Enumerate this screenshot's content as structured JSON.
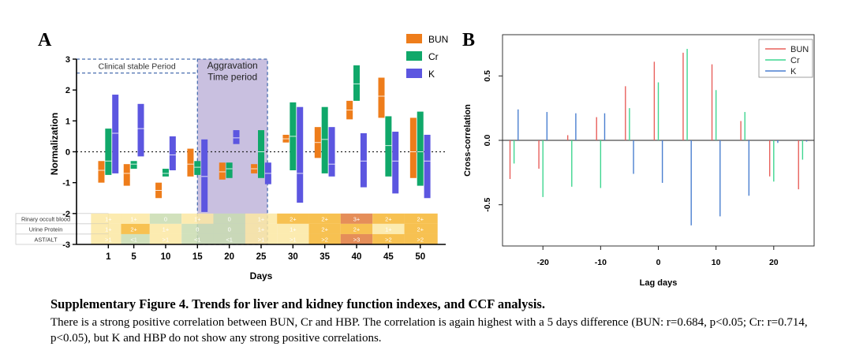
{
  "panel_a_label": "A",
  "panel_b_label": "B",
  "caption": {
    "title": "Supplementary Figure 4. Trends for liver and kidney function indexes, and CCF analysis.",
    "body": "There is a strong positive correlation between BUN, Cr and HBP. The correlation is again highest with a 5 days difference (BUN: r=0.684, p<0.05; Cr: r=0.714, p<0.05), but K and HBP do not show any strong positive correlations."
  },
  "colors": {
    "BUN_a": "#ee7d1b",
    "Cr_a": "#10a86a",
    "K_a": "#5c56e0",
    "BUN_b": "#e8605c",
    "Cr_b": "#3fd690",
    "K_b": "#4a7fd0",
    "period": "#c9c0e0",
    "period_border": "#4a6fb0"
  },
  "chart_data": [
    {
      "type": "bar",
      "subtype": "floating-range",
      "xlabel": "Days",
      "ylabel": "Normalization",
      "ylim": [
        -3,
        3
      ],
      "yticks": [
        -3,
        -2,
        -1,
        0,
        1,
        2,
        3
      ],
      "categories": [
        1,
        5,
        10,
        15,
        20,
        25,
        30,
        35,
        40,
        45,
        50
      ],
      "series": [
        {
          "name": "BUN",
          "ranges": [
            [
              -1.0,
              -0.3
            ],
            [
              -1.1,
              -0.4
            ],
            [
              -1.5,
              -1.0
            ],
            [
              -0.8,
              0.1
            ],
            [
              -0.9,
              -0.35
            ],
            [
              -0.7,
              -0.4
            ],
            [
              0.3,
              0.55
            ],
            [
              -0.2,
              0.8
            ],
            [
              1.05,
              1.65
            ],
            [
              1.1,
              2.4
            ],
            [
              -0.85,
              1.1
            ]
          ],
          "means": [
            -0.6,
            -0.7,
            -1.25,
            -0.4,
            -0.65,
            -0.55,
            0.42,
            0.3,
            1.35,
            1.8,
            0.0
          ]
        },
        {
          "name": "Cr",
          "ranges": [
            [
              -0.75,
              0.75
            ],
            [
              -0.55,
              -0.3
            ],
            [
              -0.8,
              -0.55
            ],
            [
              -0.75,
              -0.3
            ],
            [
              -0.85,
              -0.35
            ],
            [
              -0.85,
              0.7
            ],
            [
              -0.6,
              1.6
            ],
            [
              -0.7,
              1.45
            ],
            [
              1.65,
              2.8
            ],
            [
              -0.8,
              1.15
            ],
            [
              -1.1,
              1.3
            ]
          ],
          "means": [
            -0.3,
            -0.4,
            -0.7,
            -0.5,
            -0.55,
            0.0,
            0.5,
            0.4,
            2.2,
            0.2,
            0.0
          ]
        },
        {
          "name": "K",
          "ranges": [
            [
              -0.7,
              1.85
            ],
            [
              -0.15,
              1.55
            ],
            [
              -0.6,
              0.5
            ],
            [
              -1.95,
              0.4
            ],
            [
              0.25,
              0.7
            ],
            [
              -1.05,
              -0.35
            ],
            [
              -1.65,
              1.45
            ],
            [
              -0.8,
              0.8
            ],
            [
              -1.15,
              0.6
            ],
            [
              -1.35,
              0.65
            ],
            [
              -1.5,
              0.55
            ]
          ],
          "means": [
            0.6,
            0.75,
            -0.1,
            -0.8,
            0.45,
            -0.7,
            -0.7,
            -0.4,
            -0.3,
            -0.3,
            -0.3
          ]
        }
      ],
      "reference_line": 0,
      "annotations": [
        {
          "text": "Clinical stable Period",
          "x_range": [
            -4,
            15
          ]
        },
        {
          "text": "Aggravation Time period",
          "x_range": [
            15,
            26
          ]
        }
      ],
      "table": {
        "rows": [
          {
            "label": "Rinary occult blood",
            "values": [
              "1+",
              "1+",
              "0",
              "1+",
              "0",
              "1+",
              "2+",
              "2+",
              "3+",
              "2+",
              "2+"
            ]
          },
          {
            "label": "Urine Protein",
            "values": [
              "1+",
              "2+",
              "1+",
              "0",
              "0",
              "1+",
              "1+",
              "2+",
              "2+",
              "1+",
              "2+"
            ]
          },
          {
            "label": "AST/ALT",
            "values": [
              ">1",
              "<1",
              ">1",
              "<1",
              "<1",
              ">1",
              ">1",
              ">2",
              ">3",
              ">2",
              ">2"
            ]
          }
        ]
      },
      "legend": {
        "position": "top-right",
        "entries": [
          "BUN",
          "Cr",
          "K"
        ]
      }
    },
    {
      "type": "bar",
      "subtype": "stem",
      "xlabel": "Lag days",
      "ylabel": "Cross-correlation",
      "xlim": [
        -27,
        27
      ],
      "ylim": [
        -0.82,
        0.82
      ],
      "xticks": [
        -20,
        -10,
        0,
        10,
        20
      ],
      "yticks": [
        -0.5,
        0.0,
        0.5
      ],
      "ytick_labels": [
        "-0.5",
        "0.0",
        "0.5"
      ],
      "lags": [
        -25,
        -20,
        -15,
        -10,
        -5,
        0,
        5,
        10,
        15,
        20,
        25
      ],
      "series": [
        {
          "name": "BUN",
          "offset": -0.7,
          "values": [
            -0.3,
            -0.22,
            0.04,
            0.18,
            0.42,
            0.61,
            0.68,
            0.59,
            0.15,
            -0.28,
            -0.38
          ]
        },
        {
          "name": "Cr",
          "offset": 0,
          "values": [
            -0.18,
            -0.44,
            -0.36,
            -0.37,
            0.25,
            0.45,
            0.71,
            0.39,
            0.22,
            -0.32,
            -0.15
          ]
        },
        {
          "name": "K",
          "offset": 0.7,
          "values": [
            0.24,
            0.22,
            0.21,
            0.21,
            -0.26,
            -0.33,
            -0.66,
            -0.59,
            -0.43,
            -0.02,
            -0.01
          ]
        }
      ],
      "legend": {
        "position": "top-right",
        "entries": [
          "BUN",
          "Cr",
          "K"
        ]
      }
    }
  ]
}
